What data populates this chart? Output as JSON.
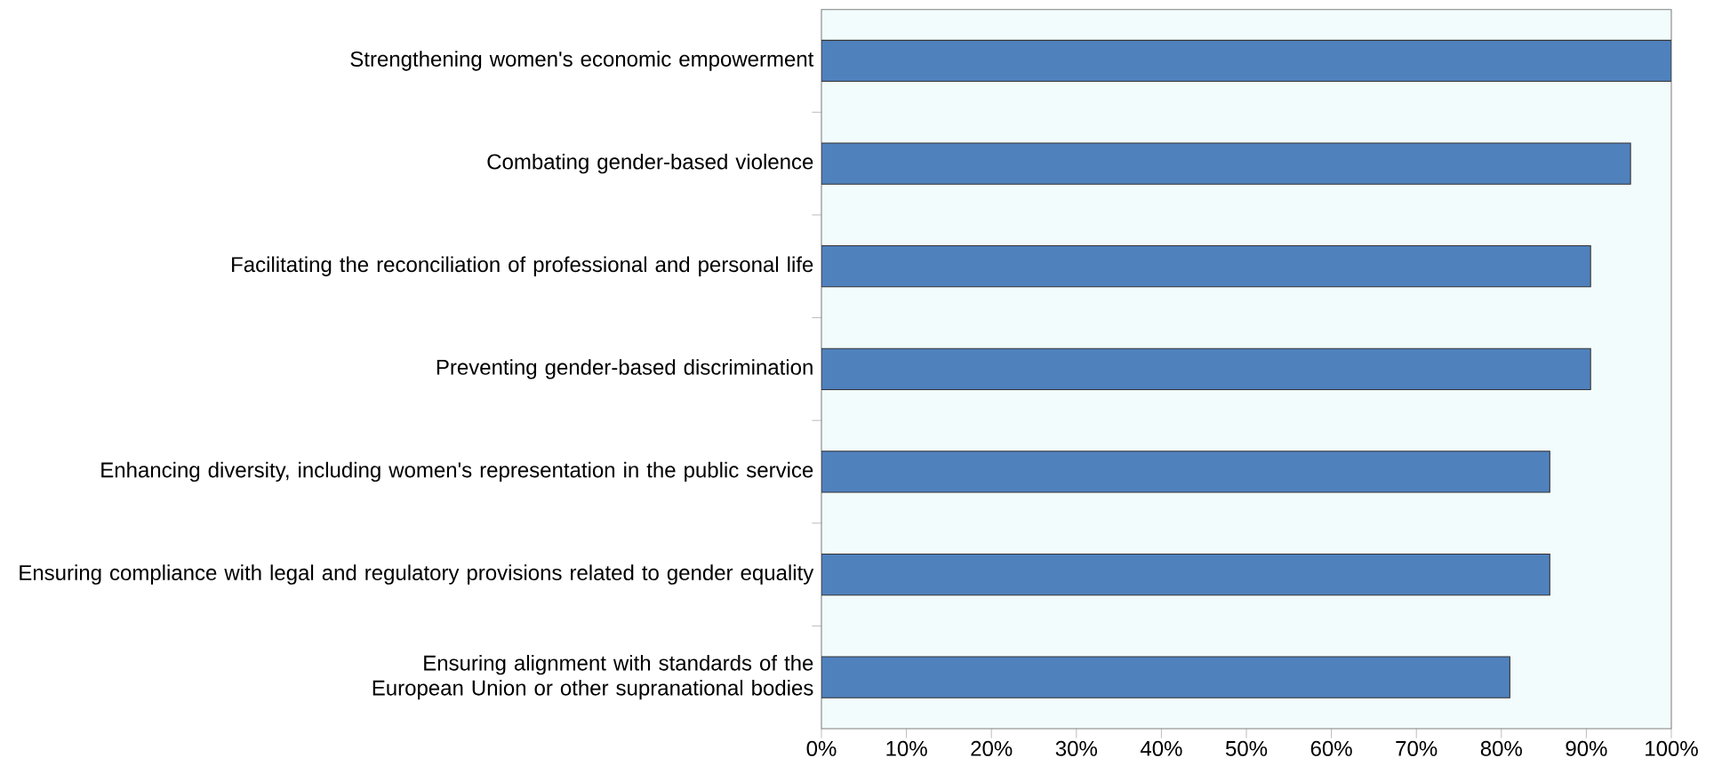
{
  "chart_data": {
    "type": "bar",
    "orientation": "horizontal",
    "categories": [
      "Strengthening women's economic empowerment",
      "Combating gender-based violence",
      "Facilitating the reconciliation of professional and personal life",
      "Preventing gender-based discrimination",
      "Enhancing diversity, including women's representation in the public service",
      "Ensuring compliance with legal and regulatory provisions related to gender equality",
      "Ensuring alignment with standards of the European Union or other supranational bodies"
    ],
    "values": [
      100,
      95.2,
      90.5,
      90.5,
      85.7,
      85.7,
      81
    ],
    "color": "#4f81bd",
    "xlim": [
      0,
      100
    ],
    "xticks": [
      {
        "value": 0,
        "label": "0%"
      },
      {
        "value": 10,
        "label": "10%"
      },
      {
        "value": 20,
        "label": "20%"
      },
      {
        "value": 30,
        "label": "30%"
      },
      {
        "value": 40,
        "label": "40%"
      },
      {
        "value": 50,
        "label": "50%"
      },
      {
        "value": 60,
        "label": "60%"
      },
      {
        "value": 70,
        "label": "70%"
      },
      {
        "value": 80,
        "label": "80%"
      },
      {
        "value": 90,
        "label": "90%"
      },
      {
        "value": 100,
        "label": "100%"
      }
    ]
  }
}
